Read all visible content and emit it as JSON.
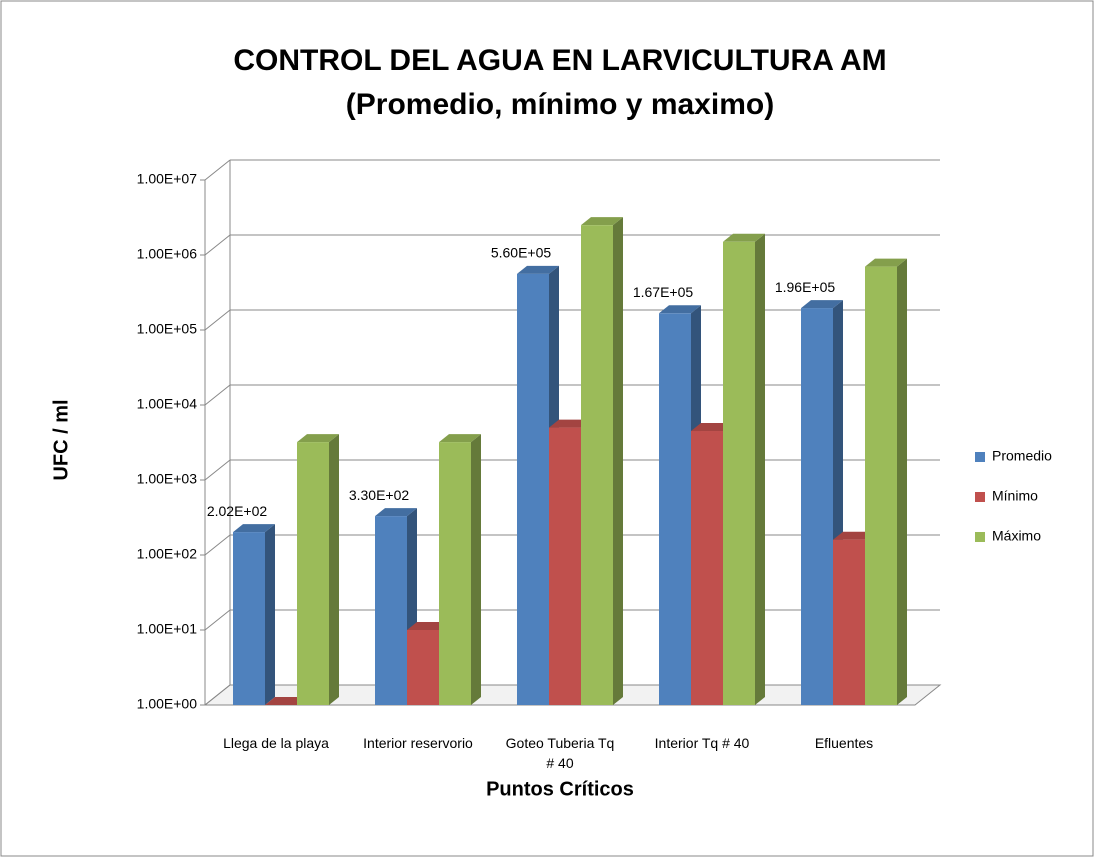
{
  "chart_data": {
    "type": "bar3d",
    "title": "CONTROL DEL AGUA EN LARVICULTURA AM",
    "subtitle": "(Promedio, mínimo y maximo)",
    "y_label": "UFC / ml",
    "x_label": "Puntos Críticos",
    "categories": [
      "Llega de la playa",
      "Interior reservorio",
      "Goteo Tuberia Tq # 40",
      "Interior Tq # 40",
      "Efluentes"
    ],
    "series": [
      {
        "name": "Promedio",
        "color": "#4f81bd",
        "values": [
          202,
          330,
          560000,
          167000,
          196000
        ],
        "value_labels": [
          "2.02E+02",
          "3.30E+02",
          "5.60E+05",
          "1.67E+05",
          "1.96E+05"
        ]
      },
      {
        "name": "Mínimo",
        "color": "#c0504d",
        "values": [
          1,
          10,
          5000,
          4500,
          160
        ]
      },
      {
        "name": "Máximo",
        "color": "#9bbb59",
        "values": [
          3200,
          3200,
          2500000,
          1500000,
          700000
        ]
      }
    ],
    "log_scale": true,
    "ylim": [
      1,
      10000000
    ],
    "yticks": [
      {
        "value": 1,
        "label": "1.00E+00"
      },
      {
        "value": 10,
        "label": "1.00E+01"
      },
      {
        "value": 100,
        "label": "1.00E+02"
      },
      {
        "value": 1000,
        "label": "1.00E+03"
      },
      {
        "value": 10000,
        "label": "1.00E+04"
      },
      {
        "value": 100000,
        "label": "1.00E+05"
      },
      {
        "value": 1000000,
        "label": "1.00E+06"
      },
      {
        "value": 10000000,
        "label": "1.00E+07"
      }
    ],
    "grid": true,
    "legend": "right"
  }
}
